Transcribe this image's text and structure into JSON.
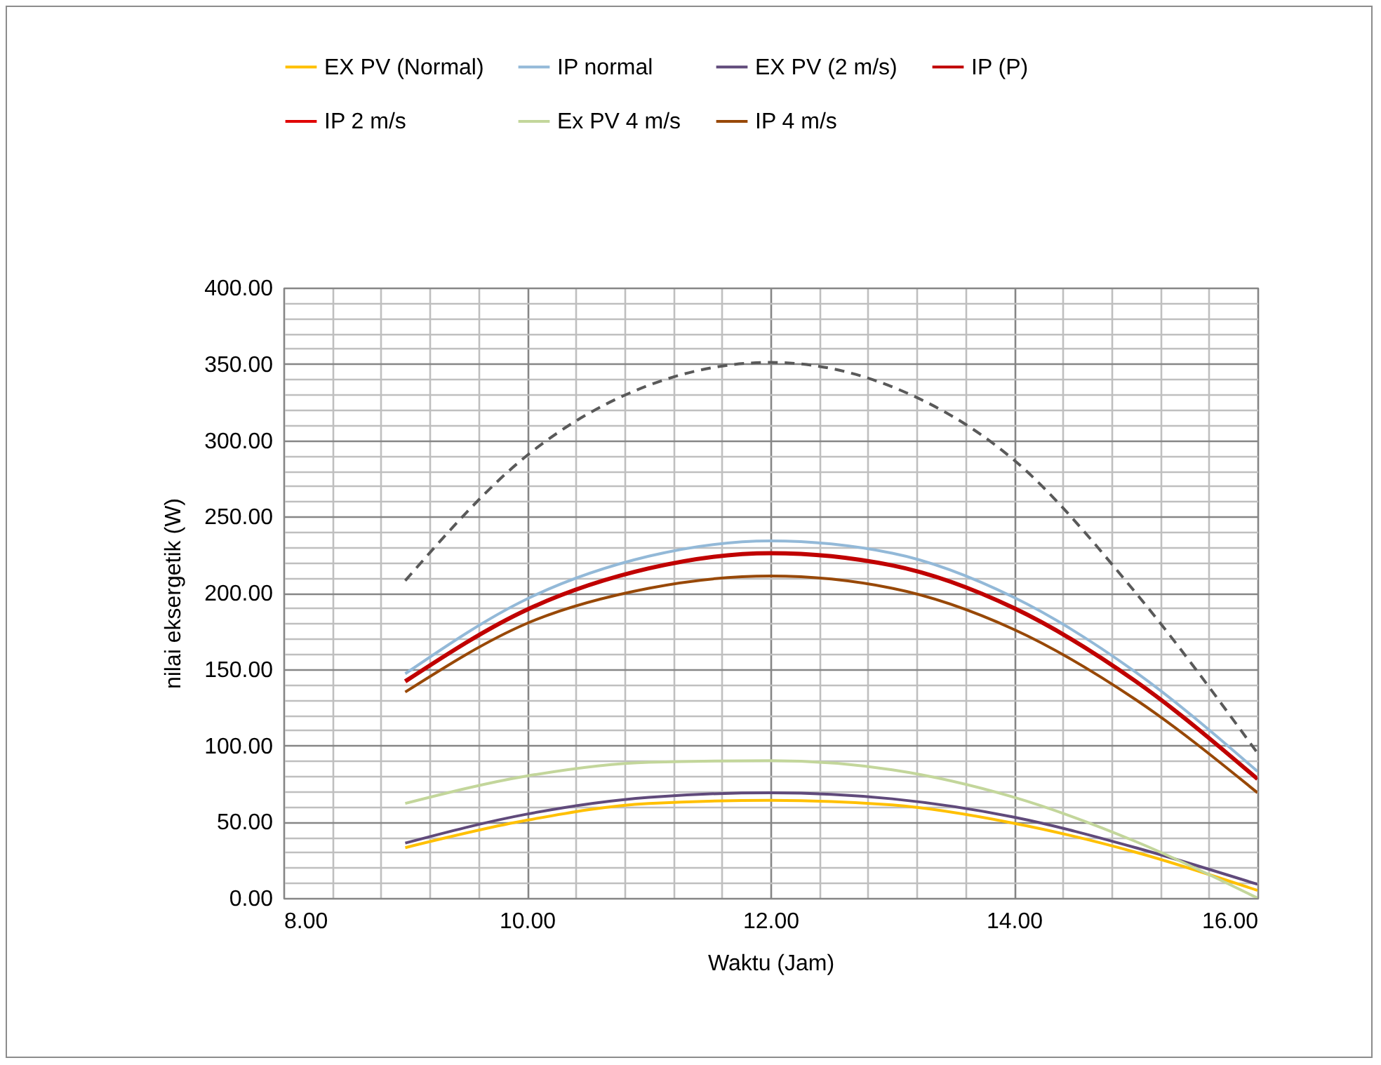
{
  "chart_data": {
    "type": "line",
    "xlabel": "Waktu (Jam)",
    "ylabel": "nilai eksergetik (W)",
    "x": [
      9,
      10,
      11,
      12,
      13,
      14,
      15,
      16
    ],
    "xlim": [
      8,
      16
    ],
    "ylim": [
      0,
      400
    ],
    "xticks": [
      {
        "value": 8,
        "label": "8.00"
      },
      {
        "value": 8.4,
        "label": null
      },
      {
        "value": 8.8,
        "label": null
      },
      {
        "value": 9.2,
        "label": null
      },
      {
        "value": 9.6,
        "label": null
      },
      {
        "value": 10,
        "label": "10.00"
      },
      {
        "value": 10.4,
        "label": null
      },
      {
        "value": 10.8,
        "label": null
      },
      {
        "value": 11.2,
        "label": null
      },
      {
        "value": 11.6,
        "label": null
      },
      {
        "value": 12,
        "label": "12.00"
      },
      {
        "value": 12.4,
        "label": null
      },
      {
        "value": 12.8,
        "label": null
      },
      {
        "value": 13.2,
        "label": null
      },
      {
        "value": 13.6,
        "label": null
      },
      {
        "value": 14,
        "label": "14.00"
      },
      {
        "value": 14.4,
        "label": null
      },
      {
        "value": 14.8,
        "label": null
      },
      {
        "value": 15.2,
        "label": null
      },
      {
        "value": 15.6,
        "label": null
      },
      {
        "value": 16,
        "label": "16.00"
      }
    ],
    "yticks": [
      {
        "value": 0,
        "label": "0.00"
      },
      {
        "value": 10,
        "label": null
      },
      {
        "value": 20,
        "label": null
      },
      {
        "value": 30,
        "label": null
      },
      {
        "value": 40,
        "label": null
      },
      {
        "value": 50,
        "label": "50.00"
      },
      {
        "value": 60,
        "label": null
      },
      {
        "value": 70,
        "label": null
      },
      {
        "value": 80,
        "label": null
      },
      {
        "value": 90,
        "label": null
      },
      {
        "value": 100,
        "label": "100.00"
      },
      {
        "value": 110,
        "label": null
      },
      {
        "value": 120,
        "label": null
      },
      {
        "value": 130,
        "label": null
      },
      {
        "value": 140,
        "label": null
      },
      {
        "value": 150,
        "label": "150.00"
      },
      {
        "value": 160,
        "label": null
      },
      {
        "value": 170,
        "label": null
      },
      {
        "value": 180,
        "label": null
      },
      {
        "value": 190,
        "label": null
      },
      {
        "value": 200,
        "label": "200.00"
      },
      {
        "value": 210,
        "label": null
      },
      {
        "value": 220,
        "label": null
      },
      {
        "value": 230,
        "label": null
      },
      {
        "value": 240,
        "label": null
      },
      {
        "value": 250,
        "label": "250.00"
      },
      {
        "value": 260,
        "label": null
      },
      {
        "value": 270,
        "label": null
      },
      {
        "value": 280,
        "label": null
      },
      {
        "value": 290,
        "label": null
      },
      {
        "value": 300,
        "label": "300.00"
      },
      {
        "value": 310,
        "label": null
      },
      {
        "value": 320,
        "label": null
      },
      {
        "value": 330,
        "label": null
      },
      {
        "value": 340,
        "label": null
      },
      {
        "value": 350,
        "label": "350.00"
      },
      {
        "value": 360,
        "label": null
      },
      {
        "value": 370,
        "label": null
      },
      {
        "value": 380,
        "label": null
      },
      {
        "value": 390,
        "label": null
      },
      {
        "value": 400,
        "label": "400.00"
      }
    ],
    "grid": true,
    "legend": "top",
    "series": [
      {
        "name": "EX PV (Normal)",
        "color": "#ffc000",
        "values": [
          33,
          51,
          62,
          64,
          61,
          49,
          30,
          5
        ]
      },
      {
        "name": "IP normal",
        "color": "#93b9d8",
        "values": [
          147,
          196,
          224,
          234,
          226,
          197,
          148,
          83
        ]
      },
      {
        "name": "EX PV (2 m/s)",
        "color": "#604a7b",
        "values": [
          36,
          55,
          66,
          69,
          65,
          53,
          33,
          9
        ]
      },
      {
        "name": "IP (P)",
        "color": "#c00000",
        "values": [
          142,
          189,
          216,
          226,
          218,
          190,
          142,
          78
        ]
      },
      {
        "name": "IP 2  m/s",
        "color": "#e00000",
        "values": [
          null,
          null,
          null,
          null,
          null,
          null,
          null,
          null
        ]
      },
      {
        "name": "Ex PV 4 m/s",
        "color": "#c3d69b",
        "values": [
          62,
          80,
          89,
          90,
          84,
          66,
          37,
          0
        ]
      },
      {
        "name": "IP 4 m/s",
        "color": "#984807",
        "values": [
          135,
          180,
          203,
          211,
          203,
          176,
          130,
          69
        ]
      },
      {
        "color": "#595959",
        "line_style": "dashed",
        "values": [
          208,
          290,
          336,
          351,
          335,
          287,
          200,
          95
        ]
      }
    ]
  }
}
